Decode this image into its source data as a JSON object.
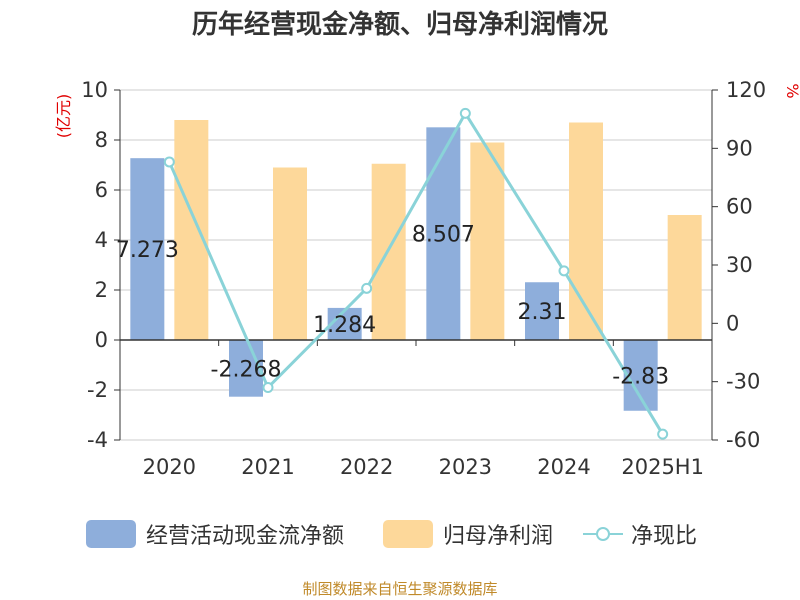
{
  "title": "历年经营现金净额、归母净利润情况",
  "footer": "制图数据来自恒生聚源数据库",
  "colors": {
    "series_cash": "#8eaedb",
    "series_profit": "#fdd89a",
    "series_ratio": "#8ad3d8",
    "left_unit": "#e00000",
    "right_unit": "#e00000",
    "axis": "#333333",
    "grid": "#cccccc"
  },
  "chart_data": {
    "type": "bar",
    "categories": [
      "2020",
      "2021",
      "2022",
      "2023",
      "2024",
      "2025H1"
    ],
    "y_left": {
      "unit_label": "(亿元)",
      "ylim": [
        -4,
        10
      ],
      "ticks": [
        -4,
        -2,
        0,
        2,
        4,
        6,
        8,
        10
      ]
    },
    "y_right": {
      "unit_label": "%",
      "ylim": [
        -60,
        120
      ],
      "ticks": [
        -60,
        -30,
        0,
        30,
        60,
        90,
        120
      ]
    },
    "grid": true,
    "legend_position": "bottom",
    "series": [
      {
        "name": "经营活动现金流净额",
        "type": "bar",
        "axis": "left",
        "values": [
          7.273,
          -2.268,
          1.284,
          8.507,
          2.31,
          -2.83
        ],
        "labels": [
          "7.273",
          "-2.268",
          "1.284",
          "8.507",
          "2.31",
          "-2.83"
        ]
      },
      {
        "name": "归母净利润",
        "type": "bar",
        "axis": "left",
        "values": [
          8.8,
          6.9,
          7.05,
          7.9,
          8.7,
          5.0
        ]
      },
      {
        "name": "净现比",
        "type": "line",
        "axis": "right",
        "values": [
          83,
          -33,
          18,
          108,
          27,
          -57
        ]
      }
    ]
  }
}
